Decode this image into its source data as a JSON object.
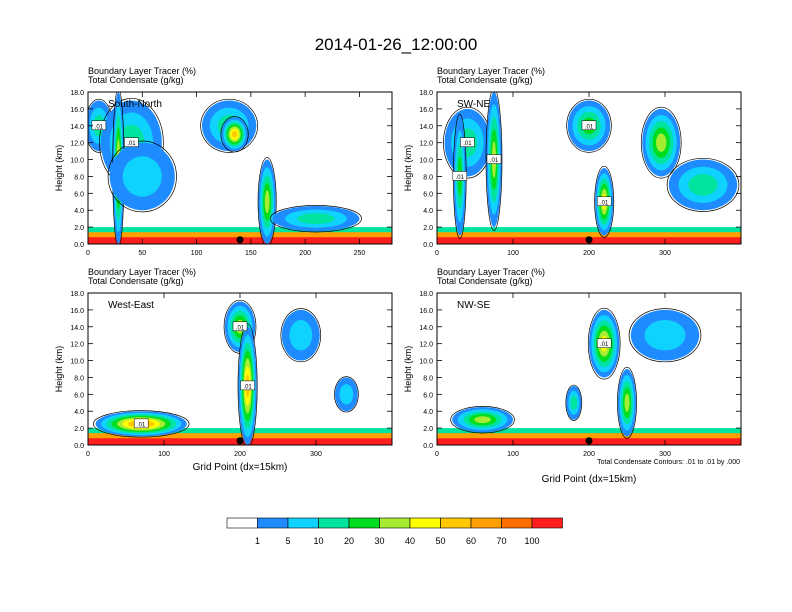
{
  "title": "2014-01-26_12:00:00",
  "footnote": "Total Condensate Contours: .01 to .01 by .000",
  "colors": {
    "levels": [
      "#ffffff",
      "#1e8cff",
      "#10d2ff",
      "#00e4a0",
      "#00dd1e",
      "#a6ec32",
      "#ffff00",
      "#ffc800",
      "#ffa000",
      "#ff6e00",
      "#ff1e1e"
    ],
    "contour": "#000000"
  },
  "colorbar": {
    "labels": [
      "1",
      "5",
      "10",
      "20",
      "30",
      "40",
      "50",
      "60",
      "70",
      "100"
    ]
  },
  "chart_data": [
    {
      "type": "heatmap",
      "label": "South-North",
      "top_line1": "Boundary Layer Tracer   (%)",
      "top_line2": "Total Condensate   (g/kg)",
      "ylabel": "Height (km)",
      "xlabel": "",
      "xlim": [
        0,
        280
      ],
      "ylim": [
        0,
        18
      ],
      "xticks": [
        "0",
        "50",
        "100",
        "150",
        "200",
        "250"
      ],
      "yticks": [
        "0.0",
        "2.0",
        "4.0",
        "6.0",
        "8.0",
        "10.0",
        "12.0",
        "14.0",
        "16.0",
        "18.0"
      ],
      "marker_x": 140,
      "contour_labels": [
        ".01",
        ".01"
      ],
      "blobs": [
        {
          "x": 10,
          "y": 14,
          "rx": 12,
          "ry": 3,
          "v": 3
        },
        {
          "x": 40,
          "y": 12,
          "rx": 28,
          "ry": 5,
          "v": 3
        },
        {
          "x": 28,
          "y": 9,
          "rx": 5,
          "ry": 9,
          "v": 6
        },
        {
          "x": 50,
          "y": 8,
          "rx": 30,
          "ry": 4,
          "v": 2
        },
        {
          "x": 130,
          "y": 14,
          "rx": 25,
          "ry": 3,
          "v": 3
        },
        {
          "x": 135,
          "y": 13,
          "rx": 12,
          "ry": 2,
          "v": 7
        },
        {
          "x": 165,
          "y": 5,
          "rx": 8,
          "ry": 5,
          "v": 5
        },
        {
          "x": 210,
          "y": 3,
          "rx": 40,
          "ry": 1.5,
          "v": 3
        }
      ]
    },
    {
      "type": "heatmap",
      "label": "SW-NE",
      "top_line1": "Boundary Layer Tracer   (%)",
      "top_line2": "Total Condensate   (g/kg)",
      "ylabel": "Height (km)",
      "xlabel": "",
      "xlim": [
        0,
        400
      ],
      "ylim": [
        0,
        18
      ],
      "xticks": [
        "0",
        "100",
        "200",
        "300"
      ],
      "yticks": [
        "0.0",
        "2.0",
        "4.0",
        "6.0",
        "8.0",
        "10.0",
        "12.0",
        "14.0",
        "16.0",
        "18.0"
      ],
      "marker_x": 200,
      "contour_labels": [
        ".01",
        ".01",
        ".01",
        ".01",
        ".01"
      ],
      "blobs": [
        {
          "x": 40,
          "y": 12,
          "rx": 30,
          "ry": 4,
          "v": 3
        },
        {
          "x": 75,
          "y": 10,
          "rx": 10,
          "ry": 8,
          "v": 5
        },
        {
          "x": 30,
          "y": 8,
          "rx": 8,
          "ry": 7,
          "v": 4
        },
        {
          "x": 200,
          "y": 14,
          "rx": 28,
          "ry": 3,
          "v": 4
        },
        {
          "x": 220,
          "y": 5,
          "rx": 12,
          "ry": 4,
          "v": 6
        },
        {
          "x": 295,
          "y": 12,
          "rx": 25,
          "ry": 4,
          "v": 5
        },
        {
          "x": 350,
          "y": 7,
          "rx": 45,
          "ry": 3,
          "v": 3
        }
      ]
    },
    {
      "type": "heatmap",
      "label": "West-East",
      "top_line1": "Boundary Layer Tracer   (%)",
      "top_line2": "Total Condensate   (g/kg)",
      "ylabel": "Height (km)",
      "xlabel": "Grid Point (dx=15km)",
      "xlim": [
        0,
        400
      ],
      "ylim": [
        0,
        18
      ],
      "xticks": [
        "0",
        "100",
        "200",
        "300"
      ],
      "yticks": [
        "0.0",
        "2.0",
        "4.0",
        "6.0",
        "8.0",
        "10.0",
        "12.0",
        "14.0",
        "16.0",
        "18.0"
      ],
      "marker_x": 200,
      "contour_labels": [
        ".01",
        ".01",
        ".01"
      ],
      "blobs": [
        {
          "x": 70,
          "y": 2.5,
          "rx": 60,
          "ry": 1.5,
          "v": 8
        },
        {
          "x": 200,
          "y": 14,
          "rx": 20,
          "ry": 3,
          "v": 5
        },
        {
          "x": 210,
          "y": 7,
          "rx": 12,
          "ry": 7,
          "v": 7
        },
        {
          "x": 280,
          "y": 13,
          "rx": 25,
          "ry": 3,
          "v": 2
        },
        {
          "x": 340,
          "y": 6,
          "rx": 15,
          "ry": 2,
          "v": 2
        }
      ]
    },
    {
      "type": "heatmap",
      "label": "NW-SE",
      "top_line1": "Boundary Layer Tracer   (%)",
      "top_line2": "Total Condensate   (g/kg)",
      "ylabel": "Height (km)",
      "xlabel": "Grid Point (dx=15km)",
      "xlim": [
        0,
        400
      ],
      "ylim": [
        0,
        18
      ],
      "xticks": [
        "0",
        "100",
        "200",
        "300"
      ],
      "yticks": [
        "0.0",
        "2.0",
        "4.0",
        "6.0",
        "8.0",
        "10.0",
        "12.0",
        "14.0",
        "16.0",
        "18.0"
      ],
      "marker_x": 200,
      "contour_labels": [
        ".01"
      ],
      "blobs": [
        {
          "x": 220,
          "y": 12,
          "rx": 20,
          "ry": 4,
          "v": 6
        },
        {
          "x": 300,
          "y": 13,
          "rx": 45,
          "ry": 3,
          "v": 2
        },
        {
          "x": 250,
          "y": 5,
          "rx": 12,
          "ry": 4,
          "v": 5
        },
        {
          "x": 60,
          "y": 3,
          "rx": 40,
          "ry": 1.5,
          "v": 5
        },
        {
          "x": 180,
          "y": 5,
          "rx": 10,
          "ry": 2,
          "v": 3
        }
      ]
    }
  ]
}
